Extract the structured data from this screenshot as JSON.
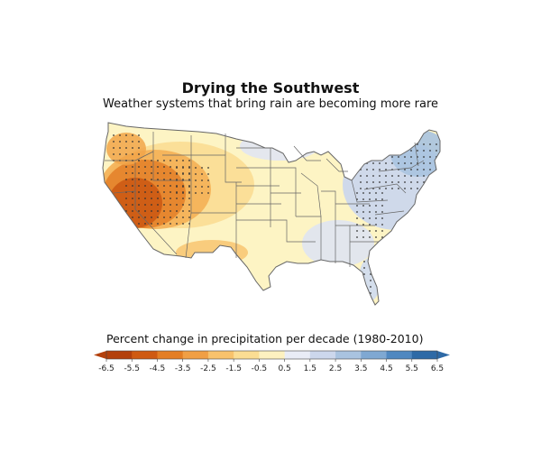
{
  "map": {
    "title": "Drying the Southwest",
    "subtitle": "Weather systems that bring rain are becoming more rare",
    "legend_title": "Percent change in precipitation per decade (1980-2010)",
    "colorbar": {
      "ticks": [
        "-6.5",
        "-5.5",
        "-4.5",
        "-3.5",
        "-2.5",
        "-1.5",
        "-0.5",
        "0.5",
        "1.5",
        "2.5",
        "3.5",
        "4.5",
        "5.5",
        "6.5"
      ],
      "colors": [
        "#b3400c",
        "#cf5a12",
        "#e47e24",
        "#f09f45",
        "#f8c26c",
        "#fbdd93",
        "#fdf1c0",
        "#e9ecf6",
        "#ccd7ec",
        "#a9c3e0",
        "#7fa8d2",
        "#5088c0",
        "#2e6aa6"
      ]
    },
    "land_color": "#fdf4c4",
    "state_border_color": "#666666",
    "dot_color": "#333333"
  }
}
